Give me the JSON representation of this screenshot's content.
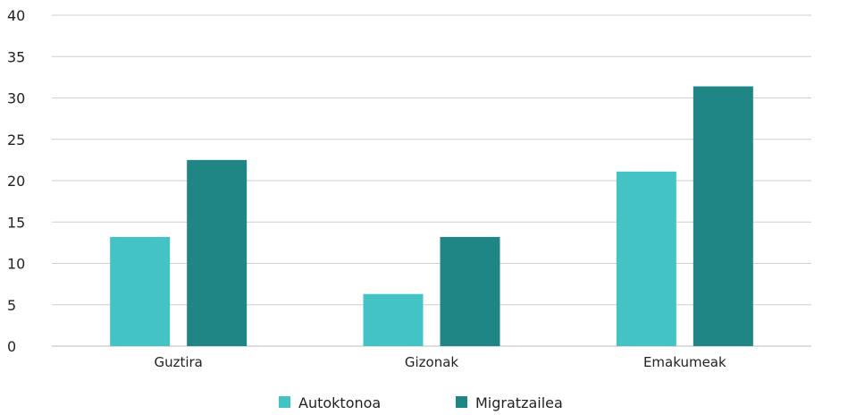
{
  "chart_data": {
    "type": "bar",
    "categories": [
      "Guztira",
      "Gizonak",
      "Emakumeak"
    ],
    "series": [
      {
        "name": "Autoktonoa",
        "color": "#43c3c4",
        "values": [
          13.2,
          6.3,
          21.1
        ]
      },
      {
        "name": "Migratzailea",
        "color": "#1f8585",
        "values": [
          22.5,
          13.2,
          31.4
        ]
      }
    ],
    "yticks": [
      "0",
      "5",
      "10",
      "15",
      "20",
      "25",
      "30",
      "35",
      "40"
    ],
    "ylim": [
      0,
      40
    ],
    "grid": true,
    "legend_position": "bottom"
  }
}
